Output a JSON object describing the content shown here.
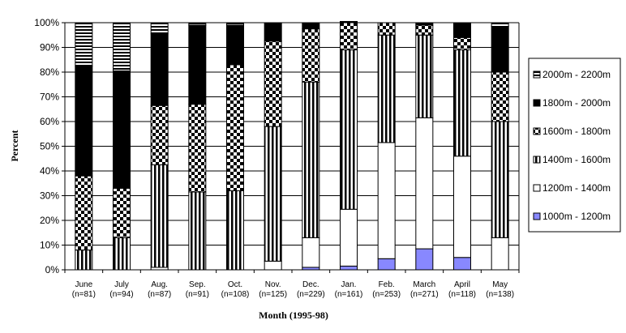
{
  "chart_data": {
    "type": "bar",
    "stacked": true,
    "percent": true,
    "xlabel": "Month (1995-98)",
    "ylabel": "Percent",
    "ylim": [
      0,
      100
    ],
    "yticks": [
      "0%",
      "10%",
      "20%",
      "30%",
      "40%",
      "50%",
      "60%",
      "70%",
      "80%",
      "90%",
      "100%"
    ],
    "grid": true,
    "legend_position": "right",
    "categories": [
      {
        "label": "June",
        "n": "(n=81)"
      },
      {
        "label": "July",
        "n": "(n=94)"
      },
      {
        "label": "Aug.",
        "n": "(n=87)"
      },
      {
        "label": "Sep.",
        "n": "(n=91)"
      },
      {
        "label": "Oct.",
        "n": "(n=108)"
      },
      {
        "label": "Nov.",
        "n": "(n=125)"
      },
      {
        "label": "Dec.",
        "n": "(n=229)"
      },
      {
        "label": "Jan.",
        "n": "(n=161)"
      },
      {
        "label": "Feb.",
        "n": "(n=253)"
      },
      {
        "label": "March",
        "n": "(n=271)"
      },
      {
        "label": "April",
        "n": "(n=118)"
      },
      {
        "label": "May",
        "n": "(n=138)"
      }
    ],
    "series": [
      {
        "name": "1000m - 1200m",
        "pattern": "solid-blue",
        "values": [
          0,
          0,
          0,
          0,
          0,
          0,
          1,
          1.5,
          4.5,
          8.5,
          5,
          0
        ]
      },
      {
        "name": "1200m - 1400m",
        "pattern": "white",
        "values": [
          0,
          0,
          1,
          0,
          0,
          3.5,
          12,
          23,
          47,
          53,
          41,
          13
        ]
      },
      {
        "name": "1400m - 1600m",
        "pattern": "vertical-stripes",
        "values": [
          8,
          13,
          41.5,
          31.5,
          32,
          54.5,
          63,
          64.5,
          43.5,
          33.5,
          43,
          47
        ]
      },
      {
        "name": "1600m - 1800m",
        "pattern": "checker",
        "values": [
          30,
          20,
          24,
          35.5,
          51,
          34.5,
          21.5,
          11,
          5,
          4,
          5,
          20
        ]
      },
      {
        "name": "1800m - 2000m",
        "pattern": "solid-black",
        "values": [
          44.5,
          47.5,
          29,
          32,
          16,
          7.5,
          2.5,
          0.5,
          0,
          1,
          6,
          18.5
        ]
      },
      {
        "name": "2000m - 2200m",
        "pattern": "horizontal-stripes",
        "values": [
          17.5,
          19.5,
          4.5,
          1,
          1,
          0,
          0,
          0,
          0,
          0,
          0,
          1.5
        ]
      }
    ],
    "colors": {
      "solid-blue": "#8888ff",
      "white": "#ffffff",
      "black": "#000000",
      "grid": "#000000"
    }
  }
}
